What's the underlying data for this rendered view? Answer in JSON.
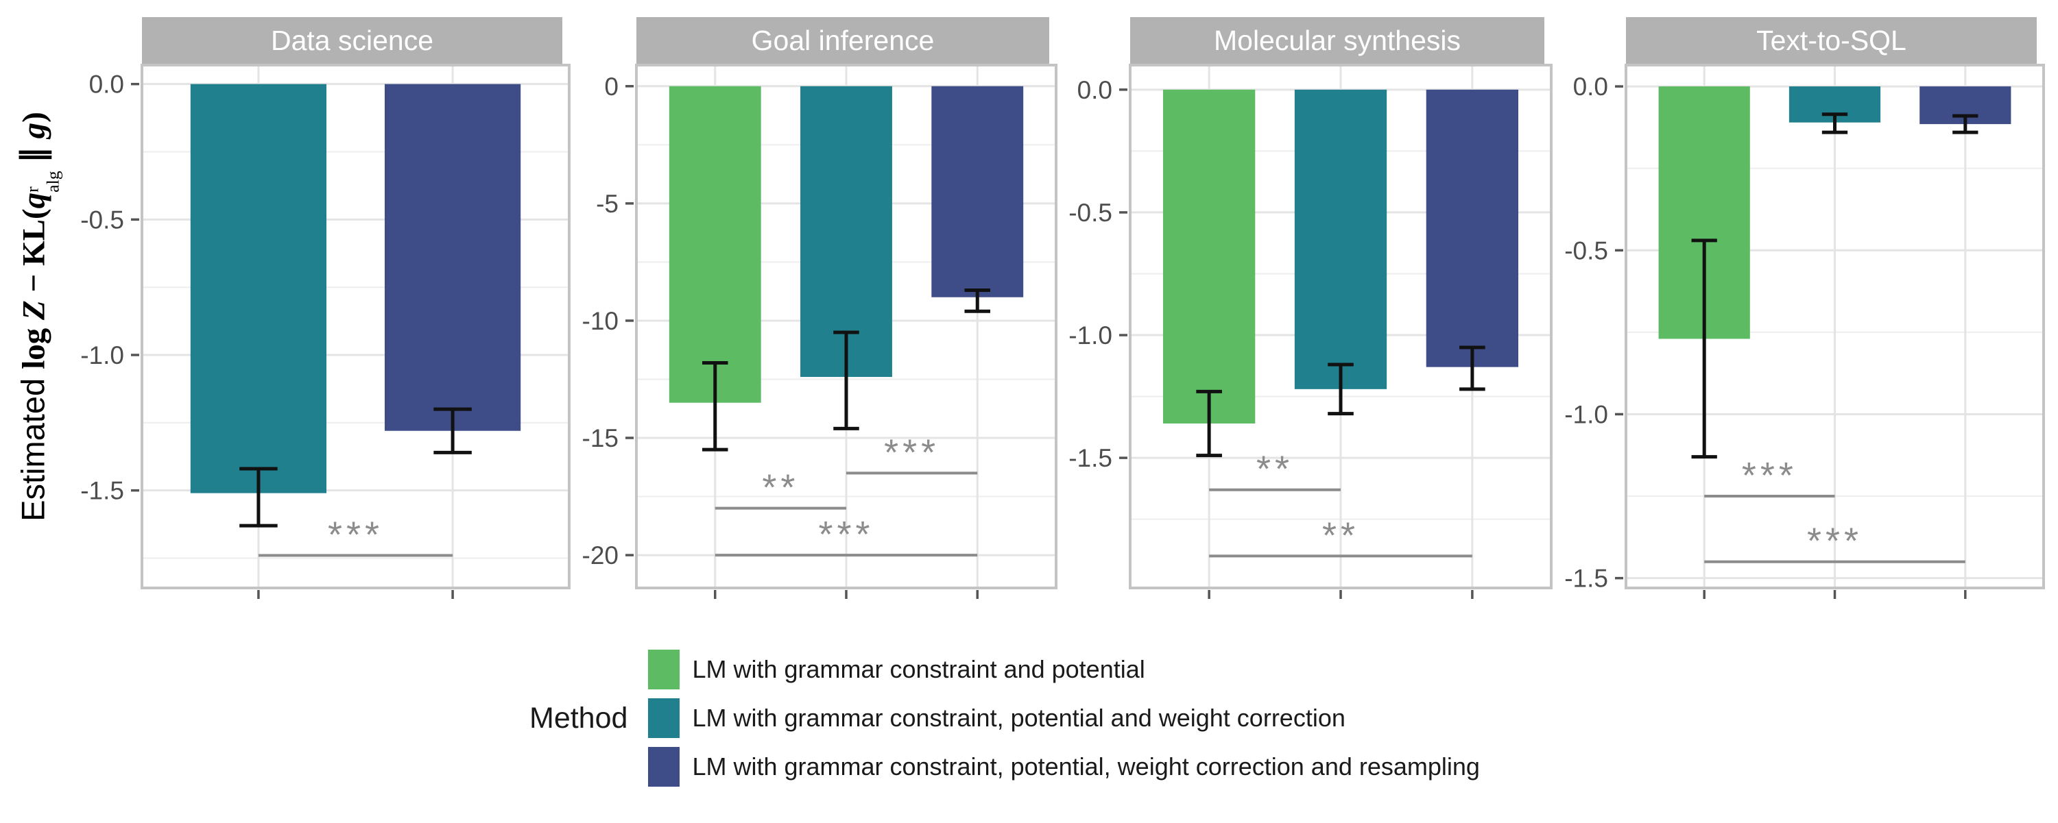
{
  "chart_data": {
    "type": "bar",
    "ylabel_text": "Estimated log Z − KL(q^r_alg ∥ g)",
    "ylabel_parts": [
      {
        "text": "Estimated ",
        "style": "sans"
      },
      {
        "text": "log ",
        "style": "serif-bold"
      },
      {
        "text": "Z",
        "style": "serif-bolditalic"
      },
      {
        "text": " − ",
        "style": "serif-bold"
      },
      {
        "text": "KL(",
        "style": "serif-bold"
      },
      {
        "text": "q",
        "style": "serif-bolditalic"
      },
      {
        "sup": "r",
        "sub": "alg",
        "style": "supsub"
      },
      {
        "text": " ∥ ",
        "style": "serif-bold"
      },
      {
        "text": "g",
        "style": "serif-bolditalic"
      },
      {
        "text": ")",
        "style": "serif-bold"
      }
    ],
    "legend_title": "Method",
    "methods": [
      {
        "name": "LM with grammar constraint and potential",
        "color": "#5cbb63"
      },
      {
        "name": "LM with grammar constraint, potential and weight correction",
        "color": "#21808d"
      },
      {
        "name": "LM with grammar constraint, potential, weight correction and resampling",
        "color": "#3e4c87"
      }
    ],
    "style": {
      "strip_bg": "#b2b2b2",
      "strip_text": "#ffffff",
      "grid_major": "#e4e4e4",
      "grid_minor": "#efefef",
      "panel_border": "#c4c4c4",
      "tick_text": "#4d4d4d",
      "error_bar": "#111111",
      "significance": "#8c8c8c"
    },
    "panels": [
      {
        "title": "Data science",
        "ylim": [
          0.07,
          -1.86
        ],
        "slots": 2,
        "yticks": [
          {
            "v": 0.0,
            "label": "0.0"
          },
          {
            "v": -0.5,
            "label": "-0.5"
          },
          {
            "v": -1.0,
            "label": "-1.0"
          },
          {
            "v": -1.5,
            "label": "-1.5"
          }
        ],
        "bars": [
          {
            "method": 1,
            "slot": 0,
            "value": -1.51,
            "err_low": -1.63,
            "err_high": -1.42
          },
          {
            "method": 2,
            "slot": 1,
            "value": -1.28,
            "err_low": -1.36,
            "err_high": -1.2
          }
        ],
        "significance": [
          {
            "a": 0,
            "b": 1,
            "y": -1.74,
            "stars": "***"
          }
        ]
      },
      {
        "title": "Goal inference",
        "ylim": [
          0.9,
          -21.4
        ],
        "slots": 3,
        "yticks": [
          {
            "v": 0,
            "label": "0"
          },
          {
            "v": -5,
            "label": "-5"
          },
          {
            "v": -10,
            "label": "-10"
          },
          {
            "v": -15,
            "label": "-15"
          },
          {
            "v": -20,
            "label": "-20"
          }
        ],
        "bars": [
          {
            "method": 0,
            "slot": 0,
            "value": -13.5,
            "err_low": -15.5,
            "err_high": -11.8
          },
          {
            "method": 1,
            "slot": 1,
            "value": -12.4,
            "err_low": -14.6,
            "err_high": -10.5
          },
          {
            "method": 2,
            "slot": 2,
            "value": -9.0,
            "err_low": -9.6,
            "err_high": -8.7
          }
        ],
        "significance": [
          {
            "a": 1,
            "b": 2,
            "y": -16.5,
            "stars": "***"
          },
          {
            "a": 0,
            "b": 1,
            "y": -18.0,
            "stars": "**"
          },
          {
            "a": 0,
            "b": 2,
            "y": -20.0,
            "stars": "***"
          }
        ]
      },
      {
        "title": "Molecular synthesis",
        "ylim": [
          0.1,
          -2.03
        ],
        "slots": 3,
        "yticks": [
          {
            "v": 0.0,
            "label": "0.0"
          },
          {
            "v": -0.5,
            "label": "-0.5"
          },
          {
            "v": -1.0,
            "label": "-1.0"
          },
          {
            "v": -1.5,
            "label": "-1.5"
          }
        ],
        "bars": [
          {
            "method": 0,
            "slot": 0,
            "value": -1.36,
            "err_low": -1.49,
            "err_high": -1.23
          },
          {
            "method": 1,
            "slot": 1,
            "value": -1.22,
            "err_low": -1.32,
            "err_high": -1.12
          },
          {
            "method": 2,
            "slot": 2,
            "value": -1.13,
            "err_low": -1.22,
            "err_high": -1.05
          }
        ],
        "significance": [
          {
            "a": 0,
            "b": 1,
            "y": -1.63,
            "stars": "**"
          },
          {
            "a": 0,
            "b": 2,
            "y": -1.9,
            "stars": "**"
          }
        ]
      },
      {
        "title": "Text-to-SQL",
        "ylim": [
          0.065,
          -1.53
        ],
        "slots": 3,
        "yticks": [
          {
            "v": 0.0,
            "label": "0.0"
          },
          {
            "v": -0.5,
            "label": "-0.5"
          },
          {
            "v": -1.0,
            "label": "-1.0"
          },
          {
            "v": -1.5,
            "label": "-1.5"
          }
        ],
        "bars": [
          {
            "method": 0,
            "slot": 0,
            "value": -0.77,
            "err_low": -1.13,
            "err_high": -0.47
          },
          {
            "method": 1,
            "slot": 1,
            "value": -0.11,
            "err_low": -0.14,
            "err_high": -0.085
          },
          {
            "method": 2,
            "slot": 2,
            "value": -0.115,
            "err_low": -0.14,
            "err_high": -0.09
          }
        ],
        "significance": [
          {
            "a": 0,
            "b": 1,
            "y": -1.25,
            "stars": "***"
          },
          {
            "a": 0,
            "b": 2,
            "y": -1.45,
            "stars": "***"
          }
        ]
      }
    ]
  }
}
